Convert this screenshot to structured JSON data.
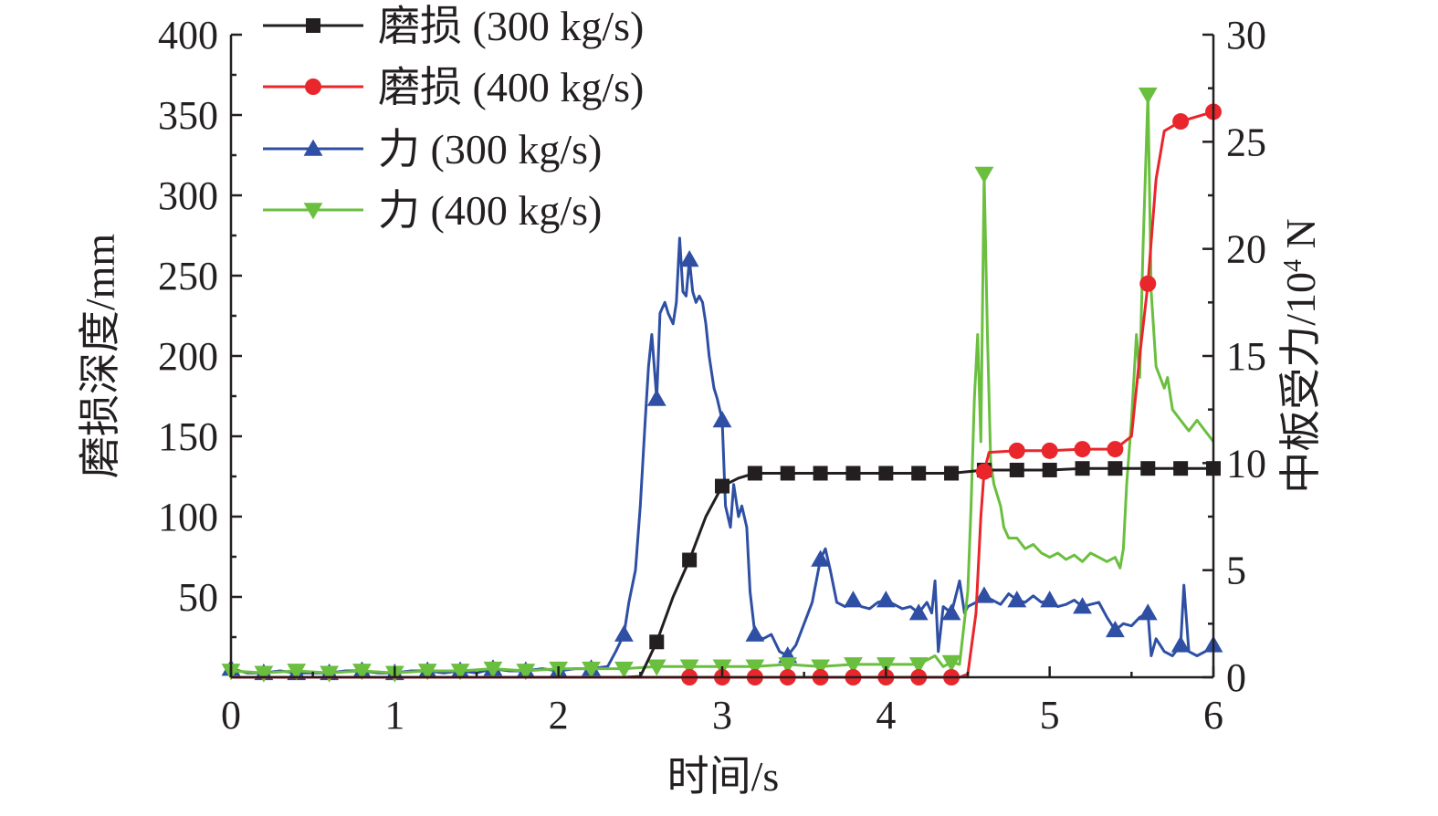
{
  "chart_data": {
    "type": "line",
    "xlabel": "时间/s",
    "ylabel": "磨损深度/mm",
    "y2label_main": "中板受力/10",
    "y2label_sup": "4",
    "y2label_unit": " N",
    "xlim": [
      0,
      6
    ],
    "ylim": [
      0,
      400
    ],
    "y2lim": [
      0,
      30
    ],
    "x_ticks": [
      "0",
      "1",
      "2",
      "3",
      "4",
      "5",
      "6"
    ],
    "y_ticks": [
      "50",
      "100",
      "150",
      "200",
      "250",
      "300",
      "350",
      "400"
    ],
    "y2_ticks": [
      "0",
      "5",
      "10",
      "15",
      "20",
      "25",
      "30"
    ],
    "grid": false,
    "legend_position": "top-left",
    "series": [
      {
        "name": "磨损 (300 kg/s)",
        "axis": "left",
        "color": "#231f20",
        "marker": "square",
        "points": [
          [
            0,
            0
          ],
          [
            0.2,
            0
          ],
          [
            0.4,
            0
          ],
          [
            0.6,
            0
          ],
          [
            0.8,
            0
          ],
          [
            1.0,
            0
          ],
          [
            1.2,
            0
          ],
          [
            1.4,
            0
          ],
          [
            1.6,
            0
          ],
          [
            1.8,
            0
          ],
          [
            2.0,
            0
          ],
          [
            2.2,
            0
          ],
          [
            2.4,
            0
          ],
          [
            2.5,
            0.5
          ],
          [
            2.6,
            22
          ],
          [
            2.7,
            50
          ],
          [
            2.8,
            73
          ],
          [
            2.9,
            100
          ],
          [
            3.0,
            119
          ],
          [
            3.1,
            124
          ],
          [
            3.2,
            127
          ],
          [
            3.4,
            127
          ],
          [
            3.6,
            127
          ],
          [
            3.8,
            127
          ],
          [
            4.0,
            127
          ],
          [
            4.2,
            127
          ],
          [
            4.4,
            127
          ],
          [
            4.6,
            129
          ],
          [
            4.8,
            129
          ],
          [
            5.0,
            129
          ],
          [
            5.2,
            130
          ],
          [
            5.4,
            130
          ],
          [
            5.6,
            130
          ],
          [
            5.8,
            130
          ],
          [
            6.0,
            130
          ]
        ],
        "markers_x": [
          2.6,
          2.8,
          3.0,
          3.2,
          3.4,
          3.6,
          3.8,
          4.0,
          4.2,
          4.4,
          4.6,
          4.8,
          5.0,
          5.2,
          5.4,
          5.6,
          5.8,
          6.0
        ]
      },
      {
        "name": "磨损 (400 kg/s)",
        "axis": "left",
        "color": "#e8262b",
        "marker": "circle",
        "points": [
          [
            0,
            0
          ],
          [
            1.0,
            0
          ],
          [
            2.0,
            0
          ],
          [
            3.0,
            0
          ],
          [
            4.0,
            0
          ],
          [
            4.45,
            0
          ],
          [
            4.5,
            2
          ],
          [
            4.55,
            40
          ],
          [
            4.58,
            100
          ],
          [
            4.6,
            128
          ],
          [
            4.63,
            140
          ],
          [
            4.8,
            141
          ],
          [
            5.0,
            141
          ],
          [
            5.2,
            142
          ],
          [
            5.4,
            142
          ],
          [
            5.5,
            150
          ],
          [
            5.55,
            200
          ],
          [
            5.6,
            245
          ],
          [
            5.65,
            310
          ],
          [
            5.7,
            340
          ],
          [
            5.8,
            346
          ],
          [
            6.0,
            352
          ]
        ],
        "markers_x": [
          2.8,
          3.0,
          3.2,
          3.4,
          3.6,
          3.8,
          4.0,
          4.2,
          4.4,
          4.6,
          4.8,
          5.0,
          5.2,
          5.4,
          5.6,
          5.8,
          6.0
        ]
      },
      {
        "name": "力 (300 kg/s)",
        "axis": "right",
        "color": "#2e4fa3",
        "marker": "triangle-up",
        "points": [
          [
            0,
            0.4
          ],
          [
            0.1,
            0.2
          ],
          [
            0.2,
            0.2
          ],
          [
            0.3,
            0.3
          ],
          [
            0.4,
            0.2
          ],
          [
            0.5,
            0.2
          ],
          [
            0.6,
            0.2
          ],
          [
            0.7,
            0.3
          ],
          [
            0.8,
            0.3
          ],
          [
            0.9,
            0.2
          ],
          [
            1.0,
            0.2
          ],
          [
            1.1,
            0.3
          ],
          [
            1.2,
            0.3
          ],
          [
            1.3,
            0.2
          ],
          [
            1.4,
            0.3
          ],
          [
            1.5,
            0.2
          ],
          [
            1.6,
            0.4
          ],
          [
            1.7,
            0.3
          ],
          [
            1.8,
            0.3
          ],
          [
            1.9,
            0.4
          ],
          [
            2.0,
            0.3
          ],
          [
            2.1,
            0.4
          ],
          [
            2.2,
            0.4
          ],
          [
            2.3,
            0.5
          ],
          [
            2.35,
            1.2
          ],
          [
            2.4,
            2.0
          ],
          [
            2.43,
            3.5
          ],
          [
            2.47,
            5.0
          ],
          [
            2.5,
            8.0
          ],
          [
            2.53,
            12.0
          ],
          [
            2.55,
            14.5
          ],
          [
            2.57,
            16.0
          ],
          [
            2.6,
            13.0
          ],
          [
            2.62,
            17.0
          ],
          [
            2.65,
            17.5
          ],
          [
            2.67,
            17.0
          ],
          [
            2.7,
            16.5
          ],
          [
            2.72,
            17.5
          ],
          [
            2.74,
            20.5
          ],
          [
            2.76,
            18.0
          ],
          [
            2.78,
            17.8
          ],
          [
            2.8,
            19.5
          ],
          [
            2.82,
            18.0
          ],
          [
            2.84,
            17.5
          ],
          [
            2.86,
            17.8
          ],
          [
            2.88,
            17.5
          ],
          [
            2.9,
            16.5
          ],
          [
            2.92,
            15.0
          ],
          [
            2.95,
            13.5
          ],
          [
            2.97,
            13.0
          ],
          [
            3.0,
            12.0
          ],
          [
            3.02,
            8.0
          ],
          [
            3.05,
            7.0
          ],
          [
            3.07,
            9.0
          ],
          [
            3.1,
            7.5
          ],
          [
            3.12,
            8.0
          ],
          [
            3.15,
            7.0
          ],
          [
            3.17,
            4.0
          ],
          [
            3.2,
            2.0
          ],
          [
            3.25,
            1.8
          ],
          [
            3.3,
            2.0
          ],
          [
            3.35,
            1.2
          ],
          [
            3.4,
            1.0
          ],
          [
            3.45,
            1.5
          ],
          [
            3.5,
            2.5
          ],
          [
            3.55,
            3.5
          ],
          [
            3.6,
            5.5
          ],
          [
            3.63,
            6.0
          ],
          [
            3.66,
            5.0
          ],
          [
            3.7,
            3.5
          ],
          [
            3.75,
            3.3
          ],
          [
            3.8,
            3.6
          ],
          [
            3.85,
            3.3
          ],
          [
            3.9,
            3.2
          ],
          [
            3.95,
            3.5
          ],
          [
            4.0,
            3.6
          ],
          [
            4.05,
            3.4
          ],
          [
            4.1,
            3.2
          ],
          [
            4.15,
            3.3
          ],
          [
            4.2,
            3.0
          ],
          [
            4.25,
            3.5
          ],
          [
            4.28,
            3.0
          ],
          [
            4.3,
            4.5
          ],
          [
            4.32,
            1.2
          ],
          [
            4.35,
            3.3
          ],
          [
            4.4,
            3.0
          ],
          [
            4.45,
            4.5
          ],
          [
            4.48,
            3.0
          ],
          [
            4.5,
            3.3
          ],
          [
            4.55,
            3.5
          ],
          [
            4.6,
            3.8
          ],
          [
            4.65,
            3.6
          ],
          [
            4.7,
            3.4
          ],
          [
            4.75,
            3.9
          ],
          [
            4.8,
            3.6
          ],
          [
            4.85,
            3.5
          ],
          [
            4.9,
            3.8
          ],
          [
            4.95,
            3.5
          ],
          [
            5.0,
            3.6
          ],
          [
            5.05,
            3.3
          ],
          [
            5.1,
            3.4
          ],
          [
            5.15,
            3.6
          ],
          [
            5.2,
            3.3
          ],
          [
            5.25,
            3.4
          ],
          [
            5.3,
            3.5
          ],
          [
            5.35,
            2.8
          ],
          [
            5.4,
            2.2
          ],
          [
            5.45,
            2.5
          ],
          [
            5.5,
            2.4
          ],
          [
            5.55,
            2.8
          ],
          [
            5.6,
            3.0
          ],
          [
            5.62,
            1.0
          ],
          [
            5.65,
            1.8
          ],
          [
            5.7,
            1.2
          ],
          [
            5.75,
            1.0
          ],
          [
            5.8,
            1.5
          ],
          [
            5.82,
            4.3
          ],
          [
            5.85,
            1.2
          ],
          [
            5.9,
            1.0
          ],
          [
            5.95,
            1.2
          ],
          [
            6.0,
            1.5
          ]
        ],
        "markers_x": [
          0,
          0.2,
          0.4,
          0.6,
          0.8,
          1.0,
          1.2,
          1.4,
          1.6,
          1.8,
          2.0,
          2.2,
          2.4,
          2.6,
          2.8,
          3.0,
          3.2,
          3.4,
          3.6,
          3.8,
          4.0,
          4.2,
          4.4,
          4.6,
          4.8,
          5.0,
          5.2,
          5.4,
          5.6,
          5.8,
          6.0
        ]
      },
      {
        "name": "力 (400 kg/s)",
        "axis": "right",
        "color": "#6abf3f",
        "marker": "triangle-down",
        "points": [
          [
            0,
            0.3
          ],
          [
            0.2,
            0.2
          ],
          [
            0.4,
            0.3
          ],
          [
            0.6,
            0.2
          ],
          [
            0.8,
            0.3
          ],
          [
            1.0,
            0.2
          ],
          [
            1.2,
            0.3
          ],
          [
            1.4,
            0.3
          ],
          [
            1.6,
            0.4
          ],
          [
            1.8,
            0.3
          ],
          [
            2.0,
            0.4
          ],
          [
            2.2,
            0.4
          ],
          [
            2.4,
            0.4
          ],
          [
            2.6,
            0.5
          ],
          [
            2.8,
            0.5
          ],
          [
            3.0,
            0.5
          ],
          [
            3.2,
            0.5
          ],
          [
            3.4,
            0.6
          ],
          [
            3.6,
            0.5
          ],
          [
            3.8,
            0.6
          ],
          [
            4.0,
            0.6
          ],
          [
            4.2,
            0.6
          ],
          [
            4.25,
            0.8
          ],
          [
            4.3,
            1.0
          ],
          [
            4.35,
            0.5
          ],
          [
            4.4,
            0.7
          ],
          [
            4.45,
            0.6
          ],
          [
            4.5,
            4.0
          ],
          [
            4.52,
            8.0
          ],
          [
            4.54,
            13.0
          ],
          [
            4.56,
            16.0
          ],
          [
            4.58,
            11.0
          ],
          [
            4.6,
            23.5
          ],
          [
            4.62,
            16.0
          ],
          [
            4.64,
            10.0
          ],
          [
            4.66,
            9.0
          ],
          [
            4.7,
            8.0
          ],
          [
            4.72,
            7.0
          ],
          [
            4.75,
            6.5
          ],
          [
            4.8,
            6.5
          ],
          [
            4.85,
            6.0
          ],
          [
            4.9,
            6.2
          ],
          [
            4.95,
            5.8
          ],
          [
            5.0,
            5.6
          ],
          [
            5.05,
            5.8
          ],
          [
            5.1,
            5.5
          ],
          [
            5.15,
            5.7
          ],
          [
            5.2,
            5.4
          ],
          [
            5.25,
            5.8
          ],
          [
            5.3,
            5.6
          ],
          [
            5.35,
            5.4
          ],
          [
            5.4,
            5.6
          ],
          [
            5.43,
            5.1
          ],
          [
            5.45,
            6.0
          ],
          [
            5.47,
            9.0
          ],
          [
            5.5,
            12.0
          ],
          [
            5.53,
            16.0
          ],
          [
            5.55,
            14.0
          ],
          [
            5.57,
            20.0
          ],
          [
            5.6,
            27.2
          ],
          [
            5.62,
            18.0
          ],
          [
            5.65,
            14.5
          ],
          [
            5.7,
            13.5
          ],
          [
            5.72,
            14.0
          ],
          [
            5.75,
            12.5
          ],
          [
            5.8,
            12.0
          ],
          [
            5.85,
            11.5
          ],
          [
            5.9,
            12.0
          ],
          [
            5.95,
            11.5
          ],
          [
            6.0,
            11.0
          ]
        ],
        "markers_x": [
          0,
          0.2,
          0.4,
          0.6,
          0.8,
          1.0,
          1.2,
          1.4,
          1.6,
          1.8,
          2.0,
          2.2,
          2.4,
          2.6,
          2.8,
          3.0,
          3.2,
          3.4,
          3.6,
          3.8,
          4.0,
          4.2,
          4.4,
          4.6,
          5.6
        ]
      }
    ]
  }
}
